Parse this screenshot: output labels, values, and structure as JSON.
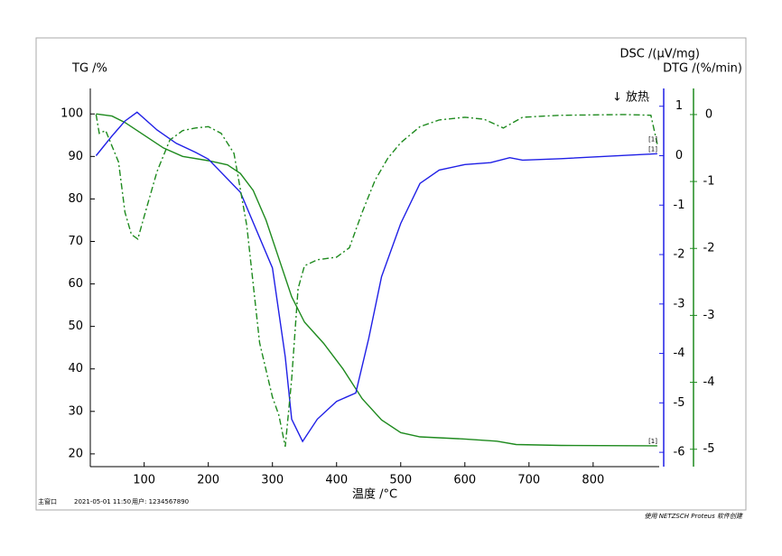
{
  "chart_data": {
    "type": "line",
    "x_label": "温度 /°C",
    "y_label": "TG /%",
    "y2_label": "DSC /(μV/mg)",
    "y3_label": "DTG /(%/min)",
    "annotation": "↓ 放热",
    "xlim": [
      16,
      903
    ],
    "xticks": [
      100,
      200,
      300,
      400,
      500,
      600,
      700,
      800
    ],
    "ylim": [
      17,
      106
    ],
    "yticks": [
      20,
      30,
      40,
      50,
      60,
      70,
      80,
      90,
      100
    ],
    "y2lim": [
      -6.29,
      1.36
    ],
    "y2ticks": [
      -6,
      -5,
      -4,
      -3,
      -2,
      -1,
      0,
      1
    ],
    "y2color": "#1f1fe6",
    "y3lim": [
      -5.26,
      0.39
    ],
    "y3ticks": [
      -5,
      -4,
      -3,
      -2,
      -1,
      0
    ],
    "y3color": "#1e8a1e",
    "series": [
      {
        "name": "TG",
        "axis": "y",
        "color": "#1e8a1e",
        "dash": "solid",
        "marker_label": "[1]",
        "x": [
          25,
          50,
          70,
          100,
          130,
          160,
          200,
          230,
          250,
          270,
          290,
          310,
          330,
          350,
          380,
          410,
          440,
          470,
          500,
          530,
          600,
          650,
          680,
          750,
          900
        ],
        "values": [
          100,
          99.5,
          98,
          95,
          92,
          90,
          89,
          88,
          86,
          82,
          75,
          66,
          57,
          51,
          46,
          40,
          33,
          28,
          25,
          24,
          23.5,
          23,
          22.2,
          22,
          21.9
        ]
      },
      {
        "name": "DSC",
        "axis": "y2",
        "color": "#1f1fe6",
        "dash": "solid",
        "marker_label": "[1]",
        "x": [
          25,
          50,
          70,
          89,
          120,
          150,
          180,
          200,
          250,
          300,
          320,
          330,
          347,
          370,
          400,
          430,
          450,
          470,
          500,
          530,
          560,
          600,
          640,
          670,
          690,
          750,
          900
        ],
        "values": [
          0,
          0.4,
          0.7,
          0.88,
          0.52,
          0.25,
          0.07,
          -0.07,
          -0.74,
          -2.27,
          -4.07,
          -5.33,
          -5.78,
          -5.33,
          -4.97,
          -4.8,
          -3.7,
          -2.45,
          -1.37,
          -0.56,
          -0.29,
          -0.18,
          -0.14,
          -0.04,
          -0.09,
          -0.06,
          0.04
        ]
      },
      {
        "name": "DTG",
        "axis": "y3",
        "color": "#1e8a1e",
        "dash": "dashdot",
        "marker_label": "[1]",
        "x": [
          25,
          30,
          40,
          60,
          70,
          80,
          90,
          100,
          120,
          140,
          160,
          180,
          200,
          220,
          240,
          260,
          280,
          300,
          310,
          320,
          330,
          340,
          350,
          370,
          400,
          420,
          440,
          460,
          480,
          500,
          530,
          560,
          600,
          630,
          660,
          690,
          750,
          850,
          890,
          900
        ],
        "values": [
          0,
          -0.28,
          -0.24,
          -0.71,
          -1.46,
          -1.79,
          -1.86,
          -1.52,
          -0.85,
          -0.38,
          -0.24,
          -0.2,
          -0.18,
          -0.28,
          -0.58,
          -1.66,
          -3.41,
          -4.22,
          -4.49,
          -4.96,
          -3.95,
          -2.6,
          -2.26,
          -2.17,
          -2.13,
          -1.99,
          -1.46,
          -0.98,
          -0.65,
          -0.42,
          -0.18,
          -0.08,
          -0.04,
          -0.07,
          -0.2,
          -0.04,
          -0.01,
          0,
          -0.01,
          -0.44
        ]
      }
    ]
  },
  "footer": {
    "left": [
      "主窗口",
      "2021-05-01 11:50",
      "用户: 1234567890"
    ],
    "right": "使用 NETZSCH Proteus 软件创建"
  }
}
